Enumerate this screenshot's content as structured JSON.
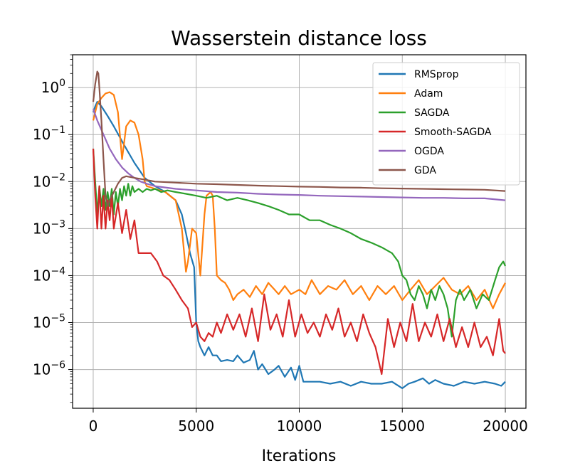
{
  "chart_data": {
    "type": "line",
    "title": "Wasserstein distance loss",
    "xlabel": "Iterations",
    "ylabel": "",
    "xlim": [
      -1000,
      21000
    ],
    "ylim": [
      1.5e-07,
      5
    ],
    "yscale": "log",
    "xticks": [
      0,
      5000,
      10000,
      15000,
      20000
    ],
    "xtick_labels": [
      "0",
      "5000",
      "10000",
      "15000",
      "20000"
    ],
    "yticks": [
      1e-06,
      1e-05,
      0.0001,
      0.001,
      0.01,
      0.1,
      1
    ],
    "ytick_labels": [
      {
        "base": "10",
        "exp": "−6"
      },
      {
        "base": "10",
        "exp": "−5"
      },
      {
        "base": "10",
        "exp": "−4"
      },
      {
        "base": "10",
        "exp": "−3"
      },
      {
        "base": "10",
        "exp": "−2"
      },
      {
        "base": "10",
        "exp": "−1"
      },
      {
        "base": "10",
        "exp": "0"
      }
    ],
    "grid": true,
    "legend_position": "top-right",
    "series": [
      {
        "name": "RMSprop",
        "color": "#1f77b4",
        "x": [
          0,
          100,
          200,
          400,
          700,
          1000,
          1500,
          2000,
          2500,
          3000,
          3500,
          4000,
          4300,
          4500,
          4700,
          4900,
          5000,
          5100,
          5200,
          5400,
          5600,
          5800,
          6000,
          6200,
          6500,
          6800,
          7000,
          7300,
          7600,
          7800,
          8000,
          8200,
          8500,
          8800,
          9000,
          9300,
          9600,
          9800,
          10000,
          10200,
          10500,
          11000,
          11500,
          12000,
          12500,
          13000,
          13500,
          14000,
          14500,
          15000,
          15300,
          15600,
          16000,
          16300,
          16600,
          17000,
          17500,
          18000,
          18500,
          19000,
          19500,
          19800,
          20000
        ],
        "y": [
          0.3,
          0.4,
          0.5,
          0.4,
          0.25,
          0.15,
          0.06,
          0.025,
          0.012,
          0.008,
          0.006,
          0.004,
          0.002,
          0.0008,
          0.0003,
          0.00015,
          1e-05,
          4e-06,
          3e-06,
          2e-06,
          3e-06,
          2e-06,
          2e-06,
          1.5e-06,
          1.6e-06,
          1.5e-06,
          2e-06,
          1.4e-06,
          1.6e-06,
          2.5e-06,
          1e-06,
          1.3e-06,
          8e-07,
          1e-06,
          1.2e-06,
          7e-07,
          1.1e-06,
          6e-07,
          1.2e-06,
          5.5e-07,
          5.5e-07,
          5.5e-07,
          5e-07,
          5.5e-07,
          4.5e-07,
          5.5e-07,
          5e-07,
          5e-07,
          5.5e-07,
          4e-07,
          5e-07,
          5.5e-07,
          6.5e-07,
          5e-07,
          6e-07,
          5e-07,
          4.5e-07,
          5.5e-07,
          5e-07,
          5.5e-07,
          5e-07,
          4.5e-07,
          5.5e-07
        ]
      },
      {
        "name": "Adam",
        "color": "#ff7f0e",
        "x": [
          0,
          100,
          200,
          400,
          600,
          800,
          1000,
          1200,
          1400,
          1600,
          1800,
          2000,
          2200,
          2400,
          2500,
          2600,
          3000,
          3500,
          4000,
          4300,
          4500,
          4600,
          4800,
          5000,
          5200,
          5400,
          5500,
          5700,
          5800,
          5900,
          6000,
          6200,
          6400,
          6600,
          6800,
          7000,
          7300,
          7600,
          7900,
          8200,
          8500,
          8800,
          9000,
          9300,
          9600,
          10000,
          10300,
          10600,
          11000,
          11400,
          11800,
          12200,
          12600,
          13000,
          13400,
          13800,
          14200,
          14600,
          15000,
          15400,
          15800,
          16200,
          16600,
          17000,
          17400,
          17800,
          18200,
          18600,
          19000,
          19400,
          19700,
          20000
        ],
        "y": [
          0.2,
          0.3,
          0.45,
          0.6,
          0.75,
          0.8,
          0.7,
          0.3,
          0.03,
          0.15,
          0.2,
          0.18,
          0.1,
          0.03,
          0.01,
          0.008,
          0.007,
          0.006,
          0.004,
          0.001,
          0.00012,
          0.0002,
          0.001,
          0.0008,
          0.0001,
          0.002,
          0.005,
          0.006,
          0.005,
          0.001,
          0.0001,
          8e-05,
          7e-05,
          5e-05,
          3e-05,
          4e-05,
          5e-05,
          3.5e-05,
          6e-05,
          4e-05,
          7e-05,
          5e-05,
          4e-05,
          6e-05,
          4e-05,
          5e-05,
          4e-05,
          8e-05,
          4e-05,
          6e-05,
          5e-05,
          8e-05,
          4e-05,
          6e-05,
          3e-05,
          6e-05,
          4e-05,
          6e-05,
          3e-05,
          5e-05,
          8e-05,
          4e-05,
          6e-05,
          9e-05,
          5e-05,
          4e-05,
          6e-05,
          3e-05,
          5e-05,
          2e-05,
          4e-05,
          7e-05
        ]
      },
      {
        "name": "SAGDA",
        "color": "#2ca02c",
        "x": [
          0,
          100,
          200,
          300,
          400,
          500,
          600,
          700,
          800,
          900,
          1000,
          1100,
          1200,
          1300,
          1400,
          1500,
          1600,
          1700,
          1800,
          1900,
          2000,
          2200,
          2400,
          2600,
          2800,
          3000,
          3300,
          3600,
          4000,
          4500,
          5000,
          5500,
          6000,
          6500,
          7000,
          7500,
          8000,
          8500,
          9000,
          9500,
          10000,
          10500,
          11000,
          11500,
          12000,
          12500,
          13000,
          13500,
          14000,
          14500,
          14800,
          15000,
          15200,
          15400,
          15600,
          15800,
          16000,
          16200,
          16400,
          16600,
          16800,
          17000,
          17200,
          17400,
          17600,
          17800,
          18000,
          18300,
          18600,
          18900,
          19200,
          19500,
          19700,
          19900,
          20000
        ],
        "y": [
          0.05,
          0.01,
          0.002,
          0.008,
          0.003,
          0.007,
          0.0025,
          0.006,
          0.003,
          0.007,
          0.002,
          0.006,
          0.003,
          0.007,
          0.004,
          0.008,
          0.005,
          0.009,
          0.005,
          0.008,
          0.006,
          0.007,
          0.006,
          0.007,
          0.0065,
          0.007,
          0.006,
          0.0065,
          0.006,
          0.0055,
          0.005,
          0.0045,
          0.005,
          0.004,
          0.0045,
          0.004,
          0.0035,
          0.003,
          0.0025,
          0.002,
          0.002,
          0.0015,
          0.0015,
          0.0012,
          0.001,
          0.0008,
          0.0006,
          0.0005,
          0.0004,
          0.0003,
          0.0002,
          0.0001,
          8e-05,
          4e-05,
          3e-05,
          6e-05,
          4e-05,
          2e-05,
          5e-05,
          3e-05,
          6e-05,
          4e-05,
          2e-05,
          5e-06,
          3e-05,
          5e-05,
          3e-05,
          5e-05,
          2e-05,
          4e-05,
          3e-05,
          8e-05,
          0.00015,
          0.0002,
          0.00016
        ]
      },
      {
        "name": "Smooth-SAGDA",
        "color": "#d62728",
        "x": [
          0,
          100,
          200,
          300,
          400,
          500,
          600,
          700,
          800,
          900,
          1000,
          1200,
          1400,
          1600,
          1800,
          2000,
          2200,
          2500,
          2800,
          3100,
          3400,
          3700,
          4000,
          4300,
          4600,
          4800,
          5000,
          5200,
          5400,
          5600,
          5800,
          6000,
          6200,
          6500,
          6800,
          7100,
          7400,
          7700,
          8000,
          8300,
          8600,
          8900,
          9200,
          9500,
          9800,
          10100,
          10400,
          10700,
          11000,
          11300,
          11600,
          11900,
          12200,
          12500,
          12800,
          13100,
          13400,
          13700,
          14000,
          14300,
          14600,
          14900,
          15200,
          15500,
          15800,
          16100,
          16400,
          16700,
          17000,
          17300,
          17600,
          17900,
          18200,
          18500,
          18800,
          19100,
          19400,
          19700,
          19900,
          20000
        ],
        "y": [
          0.05,
          0.005,
          0.001,
          0.008,
          0.001,
          0.005,
          0.001,
          0.004,
          0.0015,
          0.005,
          0.001,
          0.0035,
          0.0008,
          0.0025,
          0.0006,
          0.0015,
          0.0003,
          0.0003,
          0.0003,
          0.0002,
          0.0001,
          8e-05,
          5e-05,
          3e-05,
          2e-05,
          8e-06,
          1e-05,
          5e-06,
          4e-06,
          6e-06,
          5e-06,
          1e-05,
          6e-06,
          1.5e-05,
          7e-06,
          1.5e-05,
          5e-06,
          2e-05,
          4e-06,
          4e-05,
          7e-06,
          1.5e-05,
          5e-06,
          3e-05,
          5e-06,
          1.5e-05,
          6e-06,
          1e-05,
          5e-06,
          1.5e-05,
          7e-06,
          2e-05,
          5e-06,
          1e-05,
          4e-06,
          1.5e-05,
          6e-06,
          3e-06,
          8e-07,
          1.2e-05,
          3e-06,
          1e-05,
          4e-06,
          2.5e-05,
          4e-06,
          1e-05,
          5e-06,
          1.5e-05,
          4e-06,
          1.2e-05,
          3e-06,
          8e-06,
          3e-06,
          1e-05,
          3e-06,
          5e-06,
          2e-06,
          1.2e-05,
          2.5e-06,
          2.2e-06
        ]
      },
      {
        "name": "OGDA",
        "color": "#9467bd",
        "x": [
          0,
          200,
          500,
          800,
          1100,
          1400,
          1700,
          2000,
          2300,
          2600,
          3000,
          3500,
          4000,
          5000,
          6000,
          7000,
          8000,
          9000,
          10000,
          11000,
          12000,
          13000,
          14000,
          15000,
          16000,
          17000,
          18000,
          19000,
          20000
        ],
        "y": [
          0.35,
          0.2,
          0.1,
          0.05,
          0.03,
          0.02,
          0.015,
          0.012,
          0.01,
          0.009,
          0.008,
          0.0075,
          0.007,
          0.0065,
          0.006,
          0.0058,
          0.0055,
          0.0053,
          0.0052,
          0.005,
          0.0049,
          0.0048,
          0.0047,
          0.0046,
          0.0045,
          0.0045,
          0.0044,
          0.0044,
          0.004
        ]
      },
      {
        "name": "GDA",
        "color": "#8c564b",
        "x": [
          0,
          100,
          200,
          250,
          300,
          400,
          500,
          600,
          700,
          800,
          1000,
          1200,
          1400,
          1600,
          2000,
          2500,
          3000,
          4000,
          5000,
          6000,
          7000,
          8000,
          9000,
          10000,
          11000,
          12000,
          13000,
          14000,
          15000,
          16000,
          17000,
          18000,
          19000,
          20000
        ],
        "y": [
          0.5,
          1.2,
          2.2,
          2.0,
          1.0,
          0.2,
          0.03,
          0.005,
          0.003,
          0.004,
          0.006,
          0.009,
          0.012,
          0.013,
          0.012,
          0.011,
          0.01,
          0.0095,
          0.009,
          0.0088,
          0.0085,
          0.0082,
          0.008,
          0.0078,
          0.0077,
          0.0075,
          0.0074,
          0.0072,
          0.0071,
          0.007,
          0.0069,
          0.0068,
          0.0067,
          0.0063
        ]
      }
    ]
  }
}
